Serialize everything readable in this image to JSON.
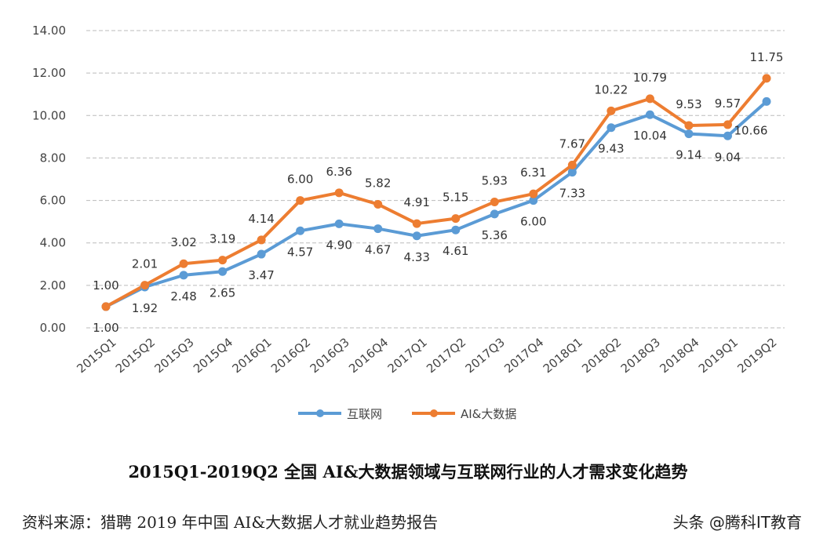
{
  "chart_data": {
    "type": "line",
    "title": "2015Q1-2019Q2 全国 AI&大数据领域与互联网行业的人才需求变化趋势",
    "categories": [
      "2015Q1",
      "2015Q2",
      "2015Q3",
      "2015Q4",
      "2016Q1",
      "2016Q2",
      "2016Q3",
      "2016Q4",
      "2017Q1",
      "2017Q2",
      "2017Q3",
      "2017Q4",
      "2018Q1",
      "2018Q2",
      "2018Q3",
      "2018Q4",
      "2019Q1",
      "2019Q2"
    ],
    "series": [
      {
        "name": "互联网",
        "color": "#5B9BD5",
        "values": [
          1.0,
          1.92,
          2.48,
          2.65,
          3.47,
          4.57,
          4.9,
          4.67,
          4.33,
          4.61,
          5.36,
          6.0,
          7.33,
          9.43,
          10.04,
          9.14,
          9.04,
          10.66
        ]
      },
      {
        "name": "AI&大数据",
        "color": "#ED7D31",
        "values": [
          1.0,
          2.01,
          3.02,
          3.19,
          4.14,
          6.0,
          6.36,
          5.82,
          4.91,
          5.15,
          5.93,
          6.31,
          7.67,
          10.22,
          10.79,
          9.53,
          9.57,
          11.75
        ]
      }
    ],
    "yticks": [
      "0.00",
      "2.00",
      "4.00",
      "6.00",
      "8.00",
      "10.00",
      "12.00",
      "14.00"
    ],
    "ylim": [
      0,
      14
    ],
    "grid": "horizontal dashed",
    "legend": "bottom"
  },
  "footer": {
    "source": "资料来源：猎聘 2019 年中国 AI&大数据人才就业趋势报告",
    "watermark": "头条 @腾科IT教育"
  }
}
